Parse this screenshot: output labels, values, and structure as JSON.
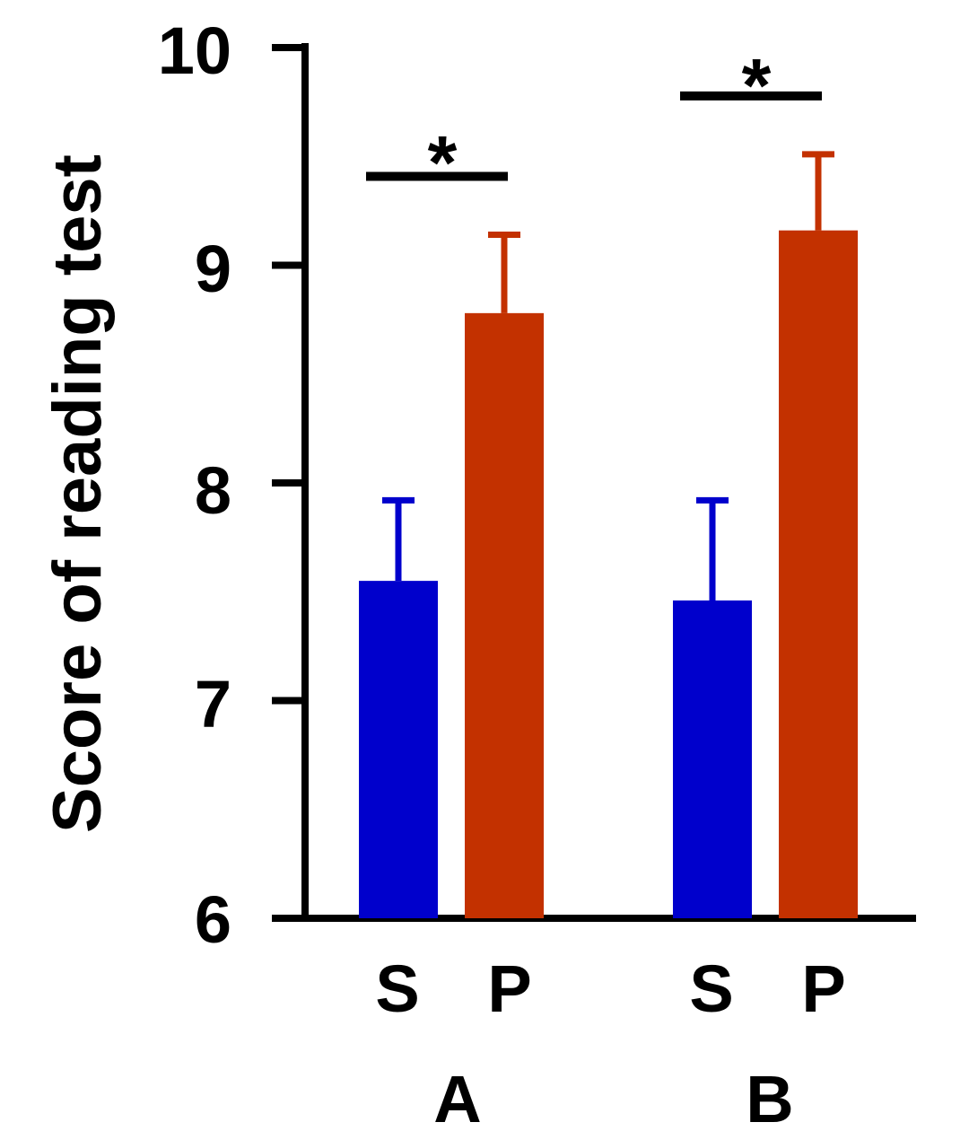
{
  "chart_data": {
    "type": "bar",
    "ylabel": "Score of reading test",
    "ylim": [
      6,
      10
    ],
    "yticks": [
      "10",
      "9",
      "8",
      "7",
      "6"
    ],
    "groups": [
      {
        "label": "A",
        "bars": [
          {
            "label": "S",
            "value": 7.55,
            "error": 0.37,
            "color": "#0000cc"
          },
          {
            "label": "P",
            "value": 8.78,
            "error": 0.36,
            "color": "#c33100"
          }
        ],
        "significance": "*"
      },
      {
        "label": "B",
        "bars": [
          {
            "label": "S",
            "value": 7.46,
            "error": 0.46,
            "color": "#0000cc"
          },
          {
            "label": "P",
            "value": 9.16,
            "error": 0.35,
            "color": "#c33100"
          }
        ],
        "significance": "*"
      }
    ],
    "grid": false
  }
}
